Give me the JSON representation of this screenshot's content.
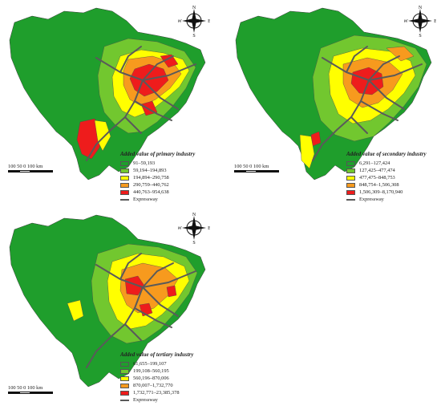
{
  "colors": {
    "class1": "#1f9e2c",
    "class2": "#72c72f",
    "class3": "#ffff00",
    "class4": "#f79a1e",
    "class5": "#ee1c1c",
    "expressway": "#5a5a5a"
  },
  "compass": {
    "n": "N",
    "s": "S",
    "e": "E",
    "w": "W"
  },
  "scale": {
    "labels": "100 50   0        100 km"
  },
  "panels": [
    {
      "legend_title": "Added value of primary industry",
      "classes": [
        "91–59,193",
        "59,194–194,893",
        "194,894–290,758",
        "290,759–440,762",
        "440,763–954,638"
      ],
      "road_label": "Expressway"
    },
    {
      "legend_title": "Added value of secondary industry",
      "classes": [
        "6,291–127,424",
        "127,425–477,474",
        "477,475–848,753",
        "848,754–1,506,308",
        "1,506,309–8,170,940"
      ],
      "road_label": "Expressway"
    },
    {
      "legend_title": "Added value of tertiary industry",
      "classes": [
        "61,655–199,107",
        "199,108–560,195",
        "560,196–870,006",
        "870,007–1,732,770",
        "1,732,771–23,385,378"
      ],
      "road_label": "Expressway"
    }
  ]
}
